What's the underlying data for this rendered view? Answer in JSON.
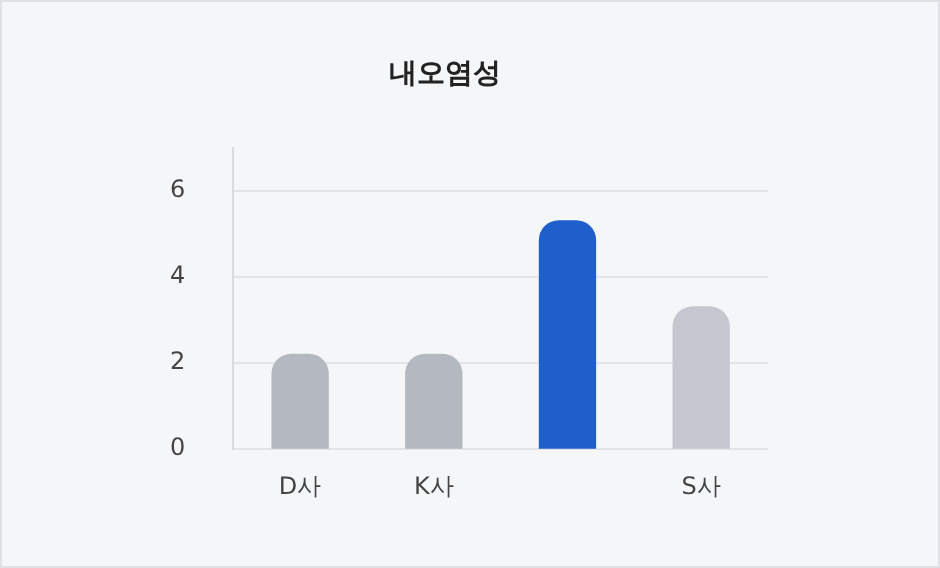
{
  "chart_data": {
    "type": "bar",
    "title": "내오염성",
    "categories": [
      "D사",
      "K사",
      null,
      "S사"
    ],
    "values": [
      2.2,
      2.2,
      5.3,
      3.3
    ],
    "colors": [
      "#b4b8bf",
      "#b4b8bf",
      "#1f5fcc",
      "#c4c8ce"
    ],
    "ylim": [
      0,
      7
    ],
    "yticks": [
      0,
      2,
      4,
      6
    ],
    "grid": "y"
  }
}
